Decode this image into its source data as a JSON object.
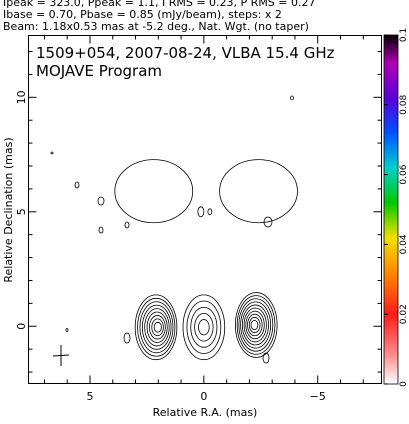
{
  "header": {
    "line1": "Ipeak = 323.0, Ppeak = 1.1, I RMS = 0.23, P RMS = 0.27",
    "line2": "Ibase = 0.70, Pbase = 0.85 (mJy/beam), steps: x 2",
    "line3": "Beam: 1.18x0.53 mas at -5.2 deg., Nat. Wgt. (no taper)"
  },
  "chart_data": {
    "type": "contour",
    "title": "1509+054, 2007-08-24, VLBA 15.4 GHz",
    "subtitle": "MOJAVE Program",
    "xlabel": "Relative R.A. (mas)",
    "ylabel": "Relative Declination (mas)",
    "xlim": [
      7.7,
      -7.8
    ],
    "ylim": [
      -2.5,
      12.7
    ],
    "x_ticks": [
      5,
      0,
      -5
    ],
    "y_ticks": [
      0,
      5,
      10
    ],
    "colorbar": {
      "range": [
        0,
        0.1
      ],
      "ticks": [
        "0",
        "0.02",
        "0.04",
        "0.06",
        "0.08",
        "0.1"
      ]
    },
    "sources": [
      {
        "ra": 2.1,
        "dec": 0.0,
        "levels": 9
      },
      {
        "ra": 0.0,
        "dec": 0.0,
        "levels": 5
      },
      {
        "ra": -2.3,
        "dec": 0.1,
        "levels": 10
      },
      {
        "ra": 2.2,
        "dec": 5.9,
        "levels": 1
      },
      {
        "ra": 0.0,
        "dec": 5.0,
        "levels": 1
      },
      {
        "ra": -2.4,
        "dec": 5.9,
        "levels": 1
      }
    ],
    "beam": {
      "major_mas": 1.18,
      "minor_mas": 0.53,
      "pa_deg": -5.2
    }
  }
}
